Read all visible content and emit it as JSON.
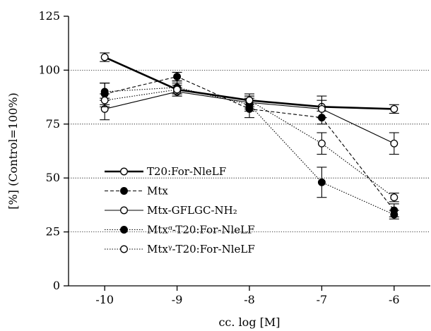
{
  "chart_data": {
    "type": "line",
    "xlabel": "cc. log [M]",
    "ylabel": "[%] (Control=100%)",
    "xlim": [
      -10.5,
      -5.5
    ],
    "ylim": [
      0,
      125
    ],
    "xticks": [
      -10,
      -9,
      -8,
      -7,
      -6
    ],
    "yticks": [
      0,
      25,
      50,
      75,
      100,
      125
    ],
    "grid": {
      "horizontal_dotted_at": [
        25,
        50,
        75,
        100
      ]
    },
    "legend_position": "lower-left",
    "series": [
      {
        "name": "T20:For-NleLF",
        "marker": "open-circle",
        "line": "thick-solid",
        "x": [
          -10,
          -9,
          -8,
          -7,
          -6
        ],
        "y": [
          106,
          91,
          86,
          83,
          82
        ],
        "err": [
          2,
          3,
          2,
          5,
          2
        ]
      },
      {
        "name": "Mtx",
        "marker": "filled-circle",
        "line": "dashed",
        "x": [
          -10,
          -9,
          -8,
          -7,
          -6
        ],
        "y": [
          89,
          97,
          82,
          78,
          35
        ],
        "err": [
          5,
          2,
          4,
          3,
          3
        ]
      },
      {
        "name": "Mtx-GFLGC-NH₂",
        "marker": "open-circle",
        "line": "thin-solid",
        "x": [
          -10,
          -9,
          -8,
          -7,
          -6
        ],
        "y": [
          82,
          90,
          85,
          82,
          66
        ],
        "err": [
          5,
          2,
          3,
          4,
          5
        ]
      },
      {
        "name": "Mtxᵅ-T20:For-NleLF",
        "marker": "filled-circle",
        "line": "dotted",
        "x": [
          -10,
          -9,
          -8,
          -7,
          -6
        ],
        "y": [
          90,
          92,
          84,
          48,
          33
        ],
        "err": [
          4,
          3,
          3,
          7,
          2
        ]
      },
      {
        "name": "Mtxᵞ-T20:For-NleLF",
        "marker": "open-circle",
        "line": "dotted",
        "x": [
          -10,
          -9,
          -8,
          -7,
          -6
        ],
        "y": [
          86,
          91,
          86,
          66,
          41
        ],
        "err": [
          3,
          2,
          3,
          5,
          2
        ]
      }
    ]
  }
}
